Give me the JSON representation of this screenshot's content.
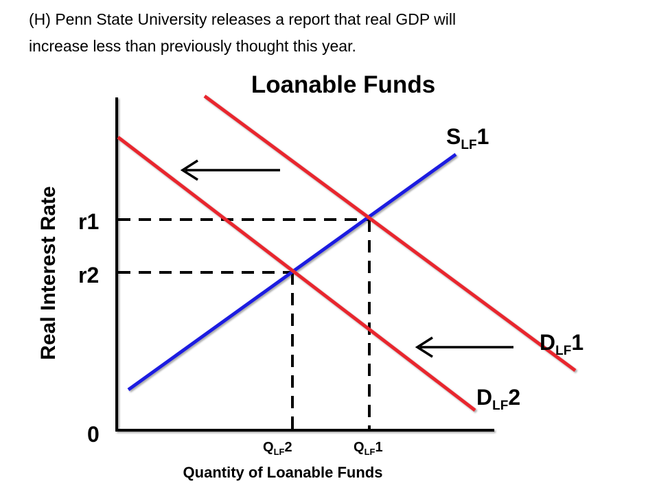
{
  "caption": {
    "line1": "(H) Penn State University releases a report that real GDP will",
    "line2": "increase less than previously thought this year."
  },
  "diagram": {
    "title": "Loanable Funds",
    "y_axis_label": "Real Interest Rate",
    "x_axis_label": "Quantity of Loanable Funds",
    "origin_label": "0",
    "rate_labels": {
      "r1": "r1",
      "r2": "r2"
    },
    "quantity_labels": {
      "q2": {
        "main": "Q",
        "sub": "LF",
        "num": "2"
      },
      "q1": {
        "main": "Q",
        "sub": "LF",
        "num": "1"
      }
    },
    "curve_labels": {
      "supply": {
        "main": "S",
        "sub": "LF",
        "num": "1"
      },
      "demand1": {
        "main": "D",
        "sub": "LF",
        "num": "1"
      },
      "demand2": {
        "main": "D",
        "sub": "LF",
        "num": "2"
      }
    },
    "colors": {
      "supply": "#1f1fe0",
      "demand": "#e8262e",
      "axis": "#000000",
      "guides": "#000000"
    }
  }
}
